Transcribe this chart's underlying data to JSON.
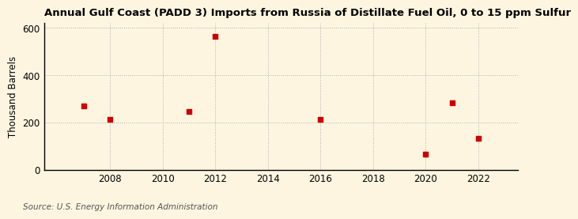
{
  "title": "Annual Gulf Coast (PADD 3) Imports from Russia of Distillate Fuel Oil, 0 to 15 ppm Sulfur",
  "ylabel": "Thousand Barrels",
  "source": "Source: U.S. Energy Information Administration",
  "background_color": "#fdf5e0",
  "plot_background_color": "#fdf5e0",
  "marker_color": "#cc0000",
  "marker": "s",
  "marker_size": 5,
  "x_data": [
    2007,
    2008,
    2011,
    2012,
    2016,
    2020,
    2021,
    2022
  ],
  "y_data": [
    270,
    213,
    248,
    565,
    212,
    67,
    284,
    135
  ],
  "xlim": [
    2005.5,
    2023.5
  ],
  "ylim": [
    0,
    620
  ],
  "yticks": [
    0,
    200,
    400,
    600
  ],
  "xticks": [
    2008,
    2010,
    2012,
    2014,
    2016,
    2018,
    2020,
    2022
  ],
  "grid_color": "#b0b0b0",
  "grid_linestyle": ":",
  "title_fontsize": 9.5,
  "label_fontsize": 8.5,
  "tick_fontsize": 8.5,
  "source_fontsize": 7.5
}
